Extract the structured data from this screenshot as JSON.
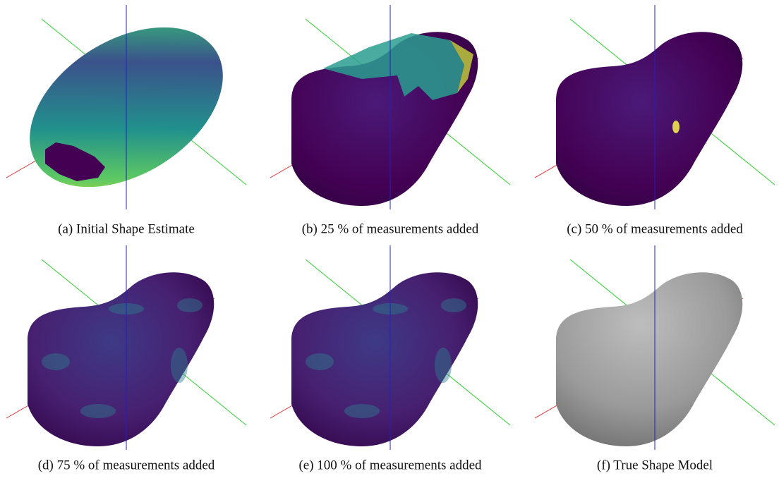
{
  "panels": [
    {
      "caption": "(a) Initial Shape Estimate"
    },
    {
      "caption": "(b) 25 % of measurements added"
    },
    {
      "caption": "(c) 50 % of measurements added"
    },
    {
      "caption": "(d) 75 % of measurements added"
    },
    {
      "caption": "(e) 100 % of measurements added"
    },
    {
      "caption": "(f) True Shape Model"
    }
  ]
}
